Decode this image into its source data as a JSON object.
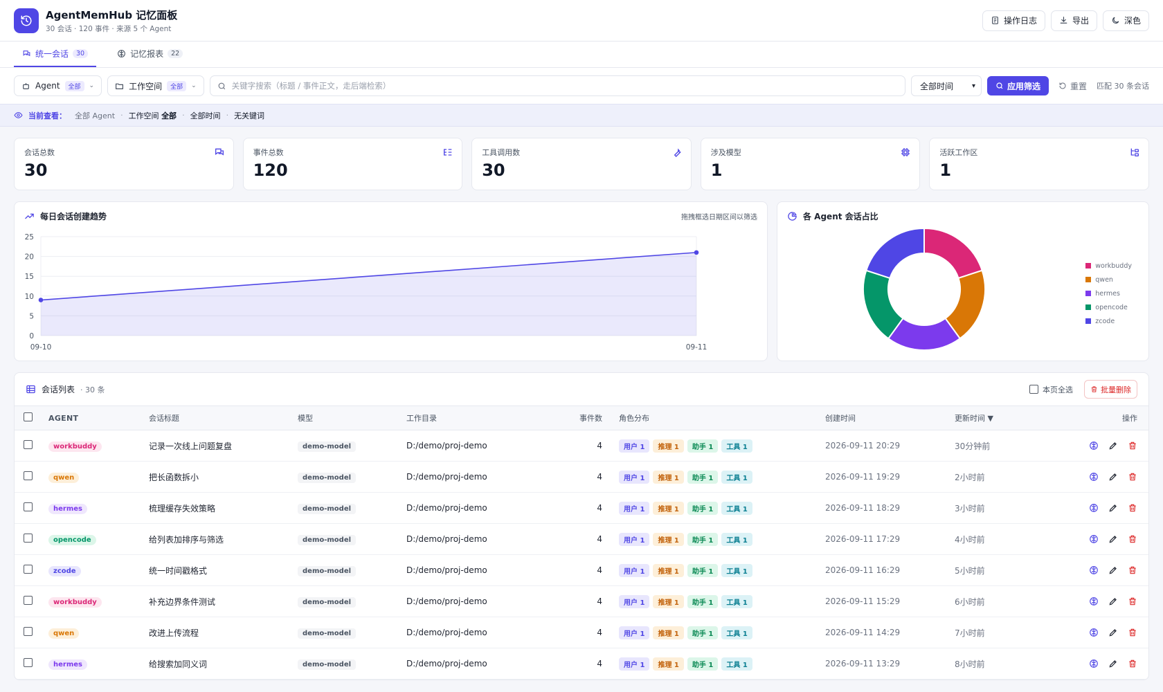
{
  "app": {
    "title": "AgentMemHub 记忆面板",
    "subtitle": "30 会话 · 120 事件 · 来源 5 个 Agent",
    "actions": {
      "oplog": "操作日志",
      "export": "导出",
      "theme": "深色"
    }
  },
  "tabs": [
    {
      "label": "统一会话",
      "count": "30"
    },
    {
      "label": "记忆报表",
      "count": "22"
    }
  ],
  "filters": {
    "agent_label": "Agent",
    "agent_value": "全部",
    "workspace_label": "工作空间",
    "workspace_value": "全部",
    "search_placeholder": "关键字搜索（标题 / 事件正文，走后端检索）",
    "time_value": "全部时间",
    "apply": "应用筛选",
    "reset": "重置",
    "match": "匹配 30 条会话"
  },
  "viewing": {
    "label": "当前查看：",
    "agent": "全部 Agent",
    "workspace_label": "工作空间",
    "workspace_value": "全部",
    "time": "全部时间",
    "keyword": "无关键词"
  },
  "stats": [
    {
      "label": "会话总数",
      "value": "30",
      "icon": "chat-icon"
    },
    {
      "label": "事件总数",
      "value": "120",
      "icon": "list-icon"
    },
    {
      "label": "工具调用数",
      "value": "30",
      "icon": "wrench-icon"
    },
    {
      "label": "涉及模型",
      "value": "1",
      "icon": "chip-icon"
    },
    {
      "label": "活跃工作区",
      "value": "1",
      "icon": "tree-icon"
    }
  ],
  "trend": {
    "title": "每日会话创建趋势",
    "hint": "拖拽框选日期区间以筛选"
  },
  "donut": {
    "title": "各 Agent 会话占比"
  },
  "chart_data": [
    {
      "type": "area",
      "x": [
        "09-10",
        "09-11"
      ],
      "series": [
        {
          "values": [
            9,
            21
          ]
        }
      ],
      "ylim": [
        0,
        25
      ],
      "yticks": [
        0,
        5,
        10,
        15,
        20,
        25
      ],
      "grid": true,
      "color": "#4f46e5"
    },
    {
      "type": "pie",
      "donut": true,
      "categories": [
        "workbuddy",
        "qwen",
        "hermes",
        "opencode",
        "zcode"
      ],
      "values": [
        6,
        6,
        6,
        6,
        6
      ],
      "colors": [
        "#db2777",
        "#d97706",
        "#7c3aed",
        "#059669",
        "#4f46e5"
      ],
      "legend": "right"
    }
  ],
  "table": {
    "title": "会话列表",
    "count": "· 30 条",
    "select_page": "本页全选",
    "bulk_delete": "批量删除",
    "columns": [
      "AGENT",
      "会话标题",
      "模型",
      "工作目录",
      "事件数",
      "角色分布",
      "创建时间",
      "更新时间 ▼",
      "操作"
    ],
    "role_labels": [
      "用户 1",
      "推理 1",
      "助手 1",
      "工具 1"
    ],
    "agent_colors": {
      "workbuddy": {
        "bg": "#fde6ef",
        "fg": "#db2777"
      },
      "qwen": {
        "bg": "#fdefd9",
        "fg": "#d97706"
      },
      "hermes": {
        "bg": "#efe7fd",
        "fg": "#7c3aed"
      },
      "opencode": {
        "bg": "#dcf6e9",
        "fg": "#059669"
      },
      "zcode": {
        "bg": "#e8e6fd",
        "fg": "#4f46e5"
      }
    },
    "rows": [
      {
        "agent": "workbuddy",
        "title": "记录一次线上问题复盘",
        "model": "demo-model",
        "dir": "D:/demo/proj-demo",
        "events": "4",
        "created": "2026-09-11 20:29",
        "updated": "30分钟前"
      },
      {
        "agent": "qwen",
        "title": "把长函数拆小",
        "model": "demo-model",
        "dir": "D:/demo/proj-demo",
        "events": "4",
        "created": "2026-09-11 19:29",
        "updated": "2小时前"
      },
      {
        "agent": "hermes",
        "title": "梳理缓存失效策略",
        "model": "demo-model",
        "dir": "D:/demo/proj-demo",
        "events": "4",
        "created": "2026-09-11 18:29",
        "updated": "3小时前"
      },
      {
        "agent": "opencode",
        "title": "给列表加排序与筛选",
        "model": "demo-model",
        "dir": "D:/demo/proj-demo",
        "events": "4",
        "created": "2026-09-11 17:29",
        "updated": "4小时前"
      },
      {
        "agent": "zcode",
        "title": "统一时间戳格式",
        "model": "demo-model",
        "dir": "D:/demo/proj-demo",
        "events": "4",
        "created": "2026-09-11 16:29",
        "updated": "5小时前"
      },
      {
        "agent": "workbuddy",
        "title": "补充边界条件测试",
        "model": "demo-model",
        "dir": "D:/demo/proj-demo",
        "events": "4",
        "created": "2026-09-11 15:29",
        "updated": "6小时前"
      },
      {
        "agent": "qwen",
        "title": "改进上传流程",
        "model": "demo-model",
        "dir": "D:/demo/proj-demo",
        "events": "4",
        "created": "2026-09-11 14:29",
        "updated": "7小时前"
      },
      {
        "agent": "hermes",
        "title": "给搜索加同义词",
        "model": "demo-model",
        "dir": "D:/demo/proj-demo",
        "events": "4",
        "created": "2026-09-11 13:29",
        "updated": "8小时前"
      }
    ]
  }
}
